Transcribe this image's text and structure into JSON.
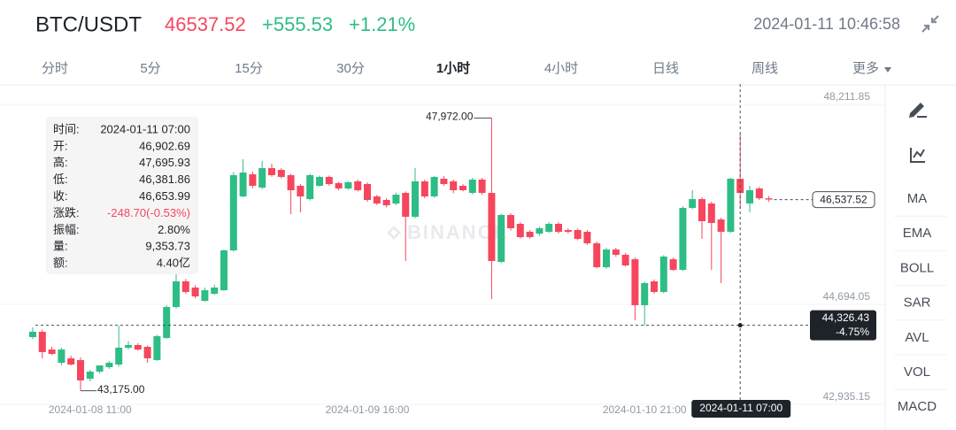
{
  "header": {
    "pair": "BTC/USDT",
    "price": "46537.52",
    "change": "+555.53",
    "change_pct": "+1.21%",
    "datetime": "2024-01-11 10:46:58"
  },
  "tabs": [
    "分时",
    "5分",
    "15分",
    "30分",
    "1小时",
    "4小时",
    "日线",
    "周线",
    "更多"
  ],
  "active_tab": 4,
  "indicators": [
    "MA",
    "EMA",
    "BOLL",
    "SAR",
    "AVL",
    "VOL",
    "MACD"
  ],
  "watermark": "BINANCE",
  "tooltip": {
    "rows": [
      [
        "时间:",
        "2024-01-11 07:00"
      ],
      [
        "开:",
        "46,902.69"
      ],
      [
        "高:",
        "47,695.93"
      ],
      [
        "低:",
        "46,381.86"
      ],
      [
        "收:",
        "46,653.99"
      ],
      [
        "涨跌:",
        "-248.70(-0.53%)"
      ],
      [
        "振幅:",
        "2.80%"
      ],
      [
        "量:",
        "9,353.73"
      ],
      [
        "额:",
        "4.40亿"
      ]
    ]
  },
  "chart_data": {
    "type": "candlestick",
    "categories": [
      null,
      null,
      null,
      null,
      null,
      null,
      "2024-01-08 11:00",
      null,
      null,
      null,
      null,
      null,
      null,
      null,
      null,
      null,
      null,
      null,
      null,
      null,
      null,
      null,
      null,
      null,
      null,
      null,
      null,
      null,
      null,
      null,
      null,
      null,
      null,
      null,
      null,
      "2024-01-09 16:00",
      null,
      null,
      null,
      null,
      null,
      null,
      null,
      null,
      null,
      null,
      null,
      null,
      null,
      null,
      null,
      null,
      null,
      null,
      null,
      null,
      null,
      null,
      null,
      null,
      null,
      null,
      null,
      null,
      "2024-01-10 21:00",
      null,
      null,
      null,
      null,
      null,
      null,
      null,
      null,
      null,
      null,
      null,
      null,
      null
    ],
    "open": [
      44118,
      44212,
      43900,
      43667,
      43745,
      43714,
      43387,
      43511,
      43589,
      43636,
      43932,
      43978,
      43947,
      43714,
      44103,
      44647,
      45099,
      44990,
      44756,
      44881,
      44943,
      45644,
      46593,
      46982,
      46749,
      47091,
      47060,
      46967,
      46780,
      46546,
      46780,
      46936,
      46827,
      46733,
      46858,
      46811,
      46593,
      46531,
      46469,
      46655,
      46235,
      46858,
      46593,
      46904,
      46858,
      46780,
      46655,
      46889,
      46655,
      45441,
      46266,
      46111,
      45971,
      45939,
      45971,
      46111,
      46002,
      46002,
      45971,
      45768,
      45348,
      45659,
      45566,
      45488,
      44679,
      45099,
      44912,
      45488,
      45301,
      46391,
      46546,
      46469,
      46188,
      45971,
      46902.69,
      46469,
      46733,
      46560
    ],
    "high": [
      44290,
      44250,
      43950,
      43932,
      43790,
      43760,
      43540,
      43620,
      43700,
      44321,
      44050,
      44010,
      43970,
      44160,
      44680,
      45379,
      45140,
      45030,
      44990,
      45040,
      45659,
      47020,
      47247,
      47030,
      47216,
      47169,
      47090,
      46990,
      46810,
      46990,
      46960,
      46960,
      46850,
      46860,
      46890,
      46840,
      46620,
      46560,
      46660,
      46680,
      47091,
      46890,
      46950,
      46950,
      46889,
      46810,
      46920,
      46920,
      47972,
      46290,
      46300,
      46140,
      46000,
      46060,
      46140,
      46140,
      46030,
      46030,
      46000,
      45800,
      45690,
      45690,
      45600,
      45520,
      45090,
      45130,
      45560,
      45520,
      46420,
      46702,
      46580,
      46500,
      46220,
      46920,
      47695.93,
      46780,
      46760,
      46600
    ],
    "low": [
      44087,
      43745,
      43800,
      43620,
      43620,
      43175,
      43340,
      43480,
      43560,
      43600,
      43900,
      43880,
      43667,
      43700,
      44090,
      44620,
      44880,
      44800,
      44740,
      44860,
      44930,
      45620,
      46580,
      46740,
      46720,
      46940,
      46910,
      46282,
      46313,
      46520,
      46760,
      46780,
      46700,
      46710,
      46680,
      46500,
      46440,
      46400,
      46440,
      45457,
      46210,
      46560,
      46570,
      46780,
      46650,
      46680,
      46630,
      46620,
      44788,
      45420,
      45990,
      45850,
      45850,
      45900,
      45950,
      45940,
      45940,
      45820,
      45740,
      45330,
      45320,
      45530,
      45360,
      44414,
      44321,
      44880,
      44890,
      45280,
      45280,
      46370,
      45846,
      45301,
      45068,
      45950,
      46381.86,
      46313,
      46530,
      46500
    ],
    "close": [
      44212,
      43854,
      43822,
      43900,
      43636,
      43356,
      43511,
      43620,
      43667,
      43932,
      43978,
      43900,
      43745,
      44134,
      44647,
      45099,
      44912,
      44834,
      44943,
      44990,
      45644,
      46967,
      47013,
      46780,
      47091,
      46967,
      46936,
      46702,
      46593,
      46967,
      46936,
      46811,
      46733,
      46842,
      46702,
      46531,
      46469,
      46437,
      46624,
      46235,
      46858,
      46593,
      46936,
      46811,
      46702,
      46702,
      46889,
      46655,
      45457,
      46266,
      46033,
      45877,
      45877,
      46033,
      46111,
      45971,
      45971,
      45846,
      45768,
      45348,
      45659,
      45566,
      45379,
      44679,
      45068,
      44912,
      45535,
      45301,
      46391,
      46546,
      46157,
      46126,
      45971,
      46904,
      46653.99,
      46702,
      46560,
      46537.52
    ],
    "up_color": "#2ebd85",
    "down_color": "#f6465d",
    "ylim": [
      42733,
      48570
    ],
    "yticks": [
      {
        "value": 48211.85,
        "label": "48,211.85"
      },
      {
        "value": 44694.05,
        "label": "44,694.05"
      },
      {
        "value": 42935.15,
        "label": "42,935.15"
      }
    ],
    "grid": true,
    "max_label": {
      "index": 48,
      "label": "47,972.00"
    },
    "min_label": {
      "index": 5,
      "label": "43,175.00"
    },
    "last_price": {
      "value": 46537.52,
      "label": "46,537.52"
    },
    "crosshair": {
      "index": 74,
      "x_label": "2024-01-11 07:00",
      "price": {
        "value": 44326.43,
        "label": "44,326.43"
      },
      "change": "-4.75%"
    }
  }
}
